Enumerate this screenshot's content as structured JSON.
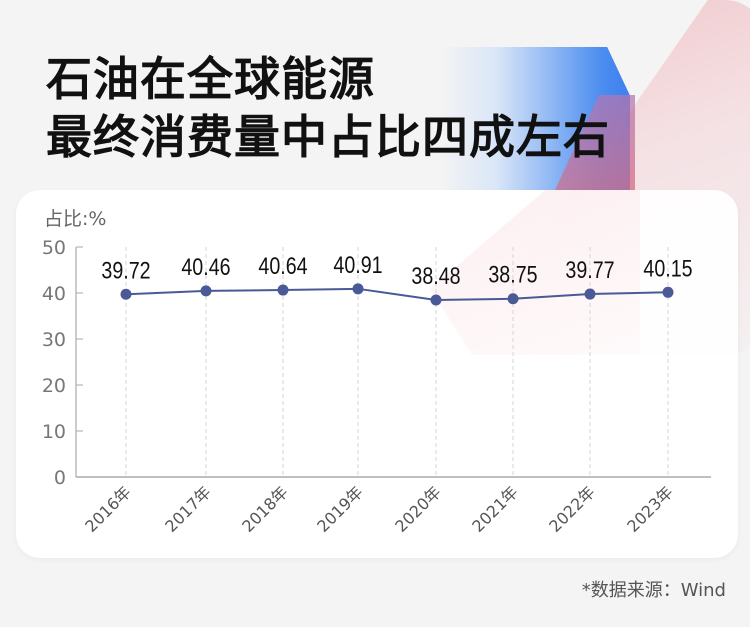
{
  "header": {
    "title_line1": "石油在全球能源",
    "title_line2": "最终消费量中占比四成左右"
  },
  "chart": {
    "unit_label": "占比:%",
    "source": "*数据来源：Wind"
  },
  "chart_data": {
    "type": "line",
    "title": "石油在全球能源最终消费量中占比四成左右",
    "xlabel": "",
    "ylabel": "占比:%",
    "categories": [
      "2016年",
      "2017年",
      "2018年",
      "2019年",
      "2020年",
      "2021年",
      "2022年",
      "2023年"
    ],
    "values": [
      39.72,
      40.46,
      40.64,
      40.91,
      38.48,
      38.75,
      39.77,
      40.15
    ],
    "value_labels": [
      "39.72",
      "40.46",
      "40.64",
      "40.91",
      "38.48",
      "38.75",
      "39.77",
      "40.15"
    ],
    "ylim": [
      0,
      50
    ],
    "yticks": [
      0,
      10,
      20,
      30,
      40,
      50
    ],
    "grid": "vertical dashed at each category",
    "legend": "none",
    "line_color": "#4a5a96",
    "marker_color": "#4a5a96"
  }
}
